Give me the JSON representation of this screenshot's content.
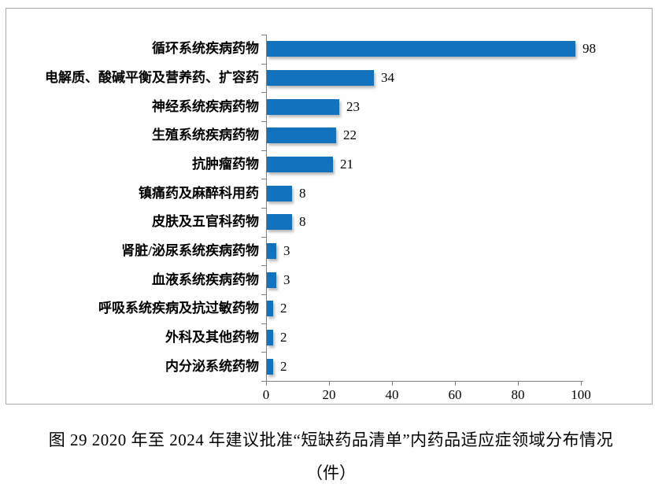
{
  "chart_data": {
    "type": "bar",
    "orientation": "horizontal",
    "title": "",
    "categories": [
      "循环系统疾病药物",
      "电解质、酸碱平衡及营养药、扩容药",
      "神经系统疾病药物",
      "生殖系统疾病药物",
      "抗肿瘤药物",
      "镇痛药及麻醉科用药",
      "皮肤及五官科药物",
      "肾脏/泌尿系统疾病药物",
      "血液系统疾病药物",
      "呼吸系统疾病及抗过敏药物",
      "外科及其他药物",
      "内分泌系统药物"
    ],
    "values": [
      98,
      34,
      23,
      22,
      21,
      8,
      8,
      3,
      3,
      2,
      2,
      2
    ],
    "xlim": [
      0,
      100
    ],
    "xticks": [
      0,
      20,
      40,
      60,
      80,
      100
    ],
    "grid": false,
    "legend": null,
    "bar_color": "#1272bd",
    "axis_color": "#7f7f7f",
    "data_labels": true
  },
  "caption": {
    "line1": "图 29  2020 年至 2024 年建议批准“短缺药品清单”内药品适应症领域分布情况",
    "line2": "（件）"
  }
}
